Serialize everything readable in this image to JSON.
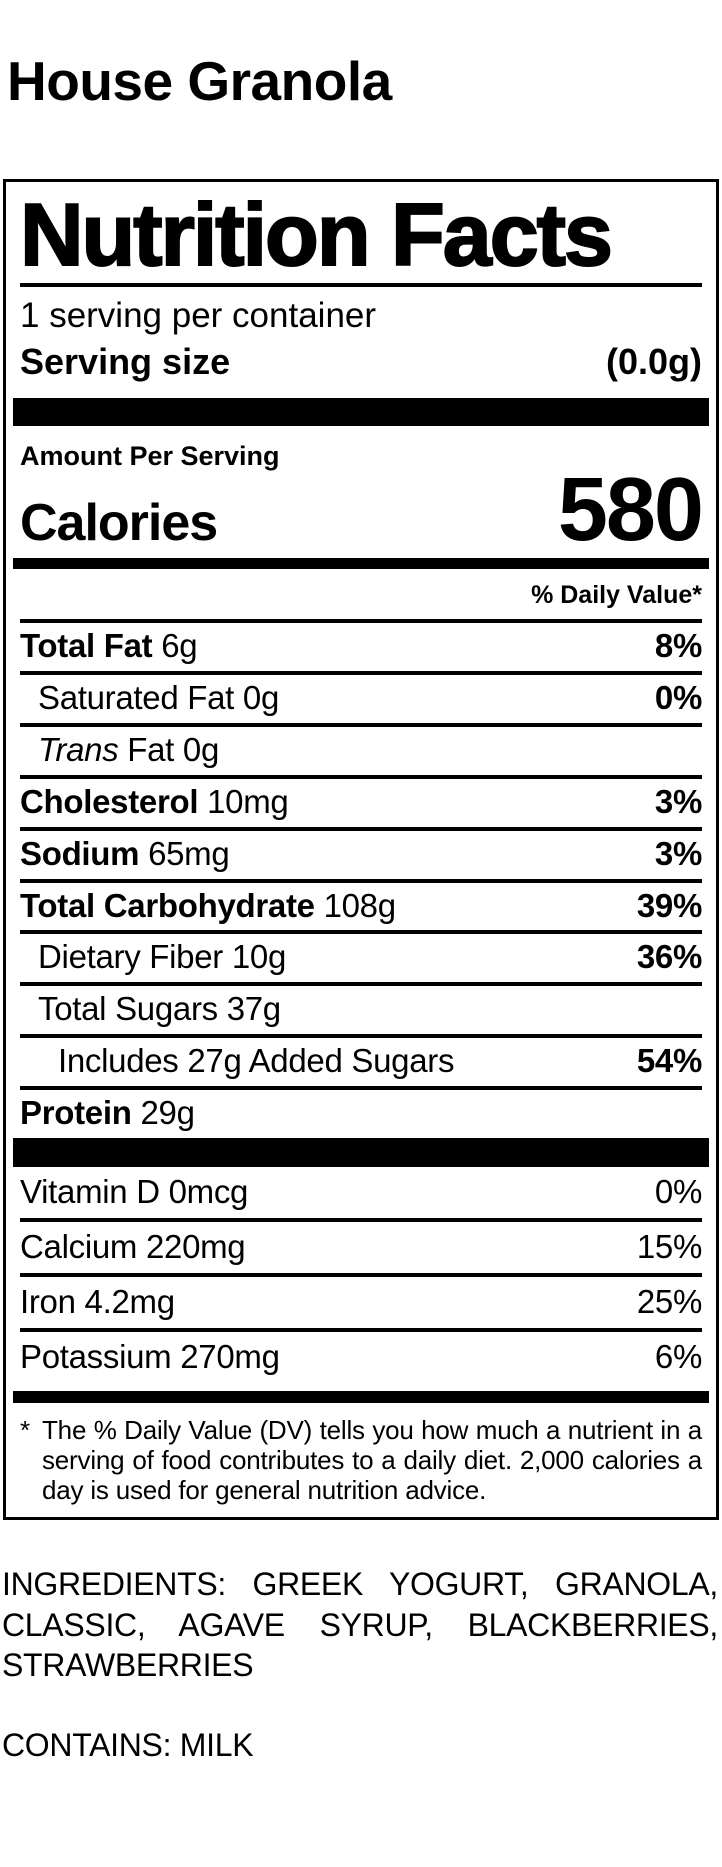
{
  "product": {
    "title": "House Granola"
  },
  "nutrition_label": {
    "title": "Nutrition Facts",
    "servings_per_container": "1 serving per container",
    "serving_size": {
      "label": "Serving size",
      "value": "(0.0g)"
    },
    "amount_per_serving": "Amount Per Serving",
    "calories": {
      "label": "Calories",
      "value": "580"
    },
    "daily_value_header": "% Daily Value*",
    "nutrient_rows": [
      {
        "parts": [
          {
            "text": "Total Fat",
            "style": "b"
          },
          {
            "text": " 6g"
          }
        ],
        "dv": "8%",
        "indent": 0
      },
      {
        "parts": [
          {
            "text": "Saturated Fat 0g"
          }
        ],
        "dv": "0%",
        "indent": 1
      },
      {
        "parts": [
          {
            "text": "Trans",
            "style": "i"
          },
          {
            "text": " Fat 0g"
          }
        ],
        "dv": "",
        "indent": 1
      },
      {
        "parts": [
          {
            "text": "Cholesterol",
            "style": "b"
          },
          {
            "text": " 10mg"
          }
        ],
        "dv": "3%",
        "indent": 0
      },
      {
        "parts": [
          {
            "text": "Sodium",
            "style": "b"
          },
          {
            "text": " 65mg"
          }
        ],
        "dv": "3%",
        "indent": 0
      },
      {
        "parts": [
          {
            "text": "Total Carbohydrate",
            "style": "b"
          },
          {
            "text": " 108g"
          }
        ],
        "dv": "39%",
        "indent": 0
      },
      {
        "parts": [
          {
            "text": "Dietary Fiber 10g"
          }
        ],
        "dv": "36%",
        "indent": 1
      },
      {
        "parts": [
          {
            "text": "Total Sugars 37g"
          }
        ],
        "dv": "",
        "indent": 1
      },
      {
        "parts": [
          {
            "text": "Includes 27g Added Sugars"
          }
        ],
        "dv": "54%",
        "indent": 2
      },
      {
        "parts": [
          {
            "text": "Protein",
            "style": "b"
          },
          {
            "text": " 29g"
          }
        ],
        "dv": "",
        "indent": 0
      }
    ],
    "vitamin_rows": [
      {
        "parts": [
          {
            "text": "Vitamin D 0mcg"
          }
        ],
        "dv": "0%"
      },
      {
        "parts": [
          {
            "text": "Calcium 220mg"
          }
        ],
        "dv": "15%"
      },
      {
        "parts": [
          {
            "text": "Iron 4.2mg"
          }
        ],
        "dv": "25%"
      },
      {
        "parts": [
          {
            "text": "Potassium 270mg"
          }
        ],
        "dv": "6%"
      }
    ],
    "footnote": {
      "marker": "*",
      "text": "The % Daily Value (DV) tells you how much a nutrient in a serving of food contributes to a daily diet. 2,000 calories a day is used for general nutrition advice."
    }
  },
  "ingredients": {
    "text": "INGREDIENTS: GREEK YOGURT, GRANOLA, CLASSIC, AGAVE SYRUP, BLACKBERRIES, STRAWBERRIES"
  },
  "allergens": {
    "text": "CONTAINS: MILK"
  },
  "colors": {
    "text": "#000000",
    "background": "#ffffff"
  }
}
